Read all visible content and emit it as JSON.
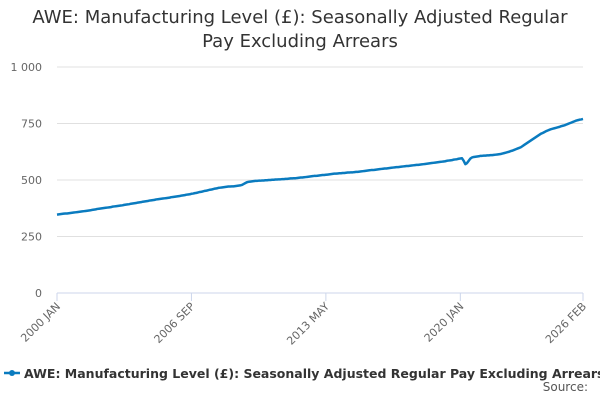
{
  "chart_data": {
    "type": "line",
    "title": "AWE: Manufacturing Level (£): Seasonally Adjusted Regular Pay Excluding Arrears",
    "source": "Source:",
    "grid": true,
    "ylim": [
      0,
      1000
    ],
    "yticks": [
      0,
      250,
      500,
      750,
      {
        "value": 1000,
        "label": "1 000"
      }
    ],
    "categories": [
      "2000 JAN",
      null,
      null,
      null,
      null,
      null,
      null,
      null,
      null,
      null,
      null,
      null,
      null,
      null,
      null,
      null,
      null,
      null,
      null,
      null,
      null,
      null,
      null,
      null,
      null,
      null,
      null,
      null,
      null,
      null,
      null,
      null,
      null,
      null,
      null,
      null,
      null,
      null,
      null,
      null,
      null,
      null,
      null,
      null,
      null,
      null,
      null,
      null,
      null,
      null,
      null,
      null,
      null,
      null,
      null,
      null,
      null,
      null,
      null,
      null,
      null,
      null,
      null,
      null,
      null,
      null,
      null,
      null,
      null,
      null,
      null,
      null,
      null,
      null,
      null,
      null,
      null,
      null,
      null,
      null,
      "2006 SEP",
      null,
      null,
      null,
      null,
      null,
      null,
      null,
      null,
      null,
      null,
      null,
      null,
      null,
      null,
      null,
      null,
      null,
      null,
      null,
      null,
      null,
      null,
      null,
      null,
      null,
      null,
      null,
      null,
      null,
      null,
      null,
      null,
      null,
      null,
      null,
      null,
      null,
      null,
      null,
      null,
      null,
      null,
      null,
      null,
      null,
      null,
      null,
      null,
      null,
      null,
      null,
      null,
      null,
      null,
      null,
      null,
      null,
      null,
      null,
      null,
      null,
      null,
      null,
      null,
      null,
      null,
      null,
      null,
      null,
      null,
      null,
      null,
      null,
      null,
      null,
      null,
      null,
      null,
      null,
      "2013 MAY",
      null,
      null,
      null,
      null,
      null,
      null,
      null,
      null,
      null,
      null,
      null,
      null,
      null,
      null,
      null,
      null,
      null,
      null,
      null,
      null,
      null,
      null,
      null,
      null,
      null,
      null,
      null,
      null,
      null,
      null,
      null,
      null,
      null,
      null,
      null,
      null,
      null,
      null,
      null,
      null,
      null,
      null,
      null,
      null,
      null,
      null,
      null,
      null,
      null,
      null,
      null,
      null,
      null,
      null,
      null,
      null,
      null,
      null,
      null,
      null,
      null,
      null,
      null,
      null,
      null,
      null,
      null,
      null,
      null,
      null,
      null,
      null,
      null,
      null,
      null,
      null,
      null,
      null,
      null,
      "2020 JAN",
      null,
      null,
      null,
      null,
      null,
      null,
      null,
      null,
      null,
      null,
      null,
      null,
      null,
      null,
      null,
      null,
      null,
      null,
      null,
      null,
      null,
      null,
      null,
      null,
      null,
      null,
      null,
      null,
      null,
      null,
      null,
      null,
      null,
      null,
      null,
      null,
      null,
      null,
      null,
      null,
      null,
      null,
      null,
      null,
      null,
      null,
      null,
      null,
      null,
      null,
      null,
      null,
      null,
      null,
      null,
      null,
      null,
      null,
      null,
      null,
      null,
      null,
      null,
      null,
      null,
      null,
      null,
      null,
      null,
      null,
      null,
      null,
      "2026 FEB"
    ],
    "series": [
      {
        "name": "AWE: Manufacturing Level (£): Seasonally Adjusted Regular Pay Excluding Arrears",
        "color": "#0a7bbf",
        "values": [
          347,
          348,
          349,
          350,
          351,
          352,
          352,
          353,
          354,
          355,
          356,
          357,
          358,
          359,
          360,
          361,
          362,
          363,
          364,
          365,
          366,
          368,
          369,
          370,
          372,
          373,
          374,
          375,
          376,
          377,
          378,
          379,
          380,
          382,
          383,
          384,
          385,
          386,
          387,
          388,
          390,
          391,
          392,
          393,
          395,
          396,
          397,
          398,
          400,
          401,
          402,
          404,
          405,
          406,
          407,
          409,
          410,
          411,
          412,
          414,
          415,
          416,
          417,
          418,
          419,
          420,
          421,
          422,
          424,
          425,
          426,
          427,
          428,
          429,
          431,
          432,
          433,
          435,
          436,
          437,
          439,
          440,
          442,
          443,
          445,
          447,
          448,
          450,
          452,
          453,
          455,
          457,
          458,
          460,
          462,
          463,
          465,
          466,
          467,
          468,
          469,
          470,
          471,
          471,
          472,
          472,
          473,
          474,
          475,
          476,
          478,
          482,
          486,
          490,
          492,
          493,
          494,
          495,
          496,
          496,
          497,
          497,
          498,
          498,
          499,
          499,
          500,
          500,
          501,
          501,
          502,
          502,
          503,
          503,
          504,
          504,
          505,
          505,
          506,
          507,
          507,
          508,
          508,
          509,
          510,
          511,
          511,
          512,
          513,
          514,
          515,
          516,
          517,
          518,
          518,
          519,
          520,
          521,
          522,
          522,
          523,
          524,
          525,
          526,
          527,
          528,
          528,
          529,
          530,
          530,
          531,
          531,
          532,
          533,
          533,
          534,
          534,
          535,
          536,
          536,
          537,
          538,
          539,
          540,
          541,
          542,
          543,
          544,
          544,
          545,
          546,
          547,
          548,
          549,
          550,
          551,
          551,
          552,
          553,
          554,
          555,
          556,
          557,
          557,
          558,
          559,
          560,
          561,
          562,
          562,
          563,
          564,
          565,
          566,
          567,
          567,
          568,
          569,
          570,
          571,
          572,
          573,
          574,
          575,
          576,
          577,
          578,
          579,
          580,
          581,
          582,
          583,
          585,
          586,
          587,
          588,
          590,
          591,
          592,
          594,
          595,
          596,
          585,
          570,
          575,
          585,
          595,
          600,
          602,
          603,
          604,
          605,
          607,
          607,
          608,
          608,
          609,
          609,
          610,
          610,
          611,
          612,
          613,
          614,
          615,
          617,
          619,
          621,
          623,
          625,
          628,
          630,
          633,
          636,
          639,
          642,
          645,
          650,
          655,
          660,
          665,
          670,
          675,
          680,
          685,
          690,
          695,
          700,
          705,
          708,
          712,
          716,
          719,
          722,
          725,
          727,
          729,
          731,
          733,
          735,
          738,
          740,
          742,
          745,
          748,
          751,
          754,
          757,
          760,
          763,
          765,
          767,
          768,
          770
        ]
      }
    ]
  }
}
